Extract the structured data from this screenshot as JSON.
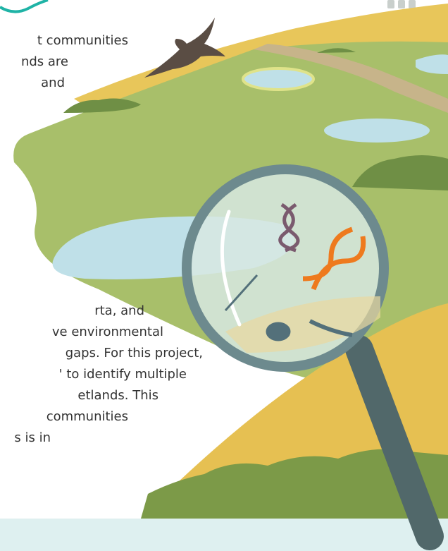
{
  "intro": {
    "lines": [
      "t communities",
      "nds are",
      "and"
    ]
  },
  "body": {
    "lines": [
      "rta, and",
      "ve environmental",
      "gaps. For this project,",
      "' to identify multiple",
      "etlands. This",
      "communities",
      "s is in"
    ]
  }
}
